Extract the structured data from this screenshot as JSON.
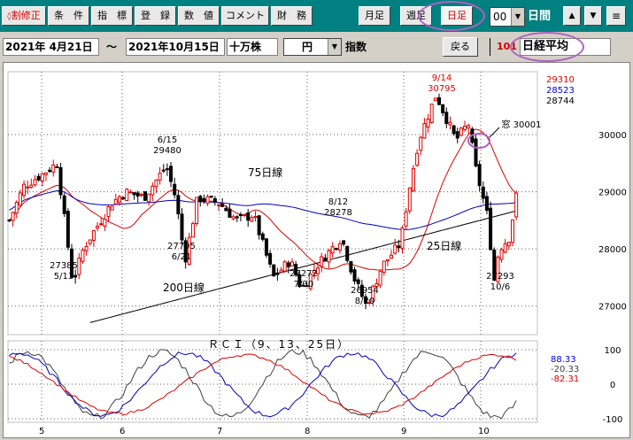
{
  "toolbar": {
    "buttons": [
      "割修正",
      "条　件",
      "指　標",
      "登　録",
      "数　値",
      "コメント",
      "財　務"
    ],
    "period_buttons": [
      "月足",
      "週足",
      "日足"
    ],
    "hour_value": "00",
    "unit_label": "日間",
    "nav_up": "▲",
    "nav_down": "▼",
    "menu_icon": "≡"
  },
  "row2": {
    "date_from": "2021年  4月21日",
    "tilde": "～",
    "date_to": "2021年10月15日",
    "unit": "十万株",
    "currency": "円",
    "index_label": "指数",
    "back_button": "戻る",
    "code": "101",
    "index_name": "日経平均"
  },
  "chart_data": [
    {
      "type": "candlestick",
      "title": "",
      "x_tick_labels": [
        "5",
        "6",
        "7",
        "8",
        "9",
        "10"
      ],
      "y_tick_labels": [
        "30000",
        "29000",
        "28000",
        "27000"
      ],
      "ylim": [
        26500,
        31100
      ],
      "legend_values": [
        "29310",
        "28523",
        "28744"
      ],
      "legend_colors": [
        "#e00000",
        "#0000e0",
        "#000000"
      ],
      "series": [
        {
          "name": "25日線",
          "color": "#e00000"
        },
        {
          "name": "75日線",
          "color": "#0000c0"
        },
        {
          "name": "200日線",
          "color": "#000000"
        }
      ],
      "annotations": [
        {
          "text": "6/15",
          "sub": "29480"
        },
        {
          "text": "27385",
          "sub": "5/13"
        },
        {
          "text": "27795",
          "sub": "6/21"
        },
        {
          "text": "8/12",
          "sub": "28278"
        },
        {
          "text": "27272",
          "sub": "7/30"
        },
        {
          "text": "26954",
          "sub": "8/20"
        },
        {
          "text": "9/14",
          "sub": "30795"
        },
        {
          "text": "27293",
          "sub": "10/6"
        },
        {
          "text": "窓  30001",
          "sub": ""
        }
      ],
      "price_path": [
        [
          "4/21",
          28500
        ],
        [
          "4/26",
          29100
        ],
        [
          "5/1",
          29300
        ],
        [
          "5/7",
          29500
        ],
        [
          "5/13",
          27400
        ],
        [
          "5/17",
          28000
        ],
        [
          "5/21",
          28300
        ],
        [
          "5/28",
          28800
        ],
        [
          "6/2",
          29000
        ],
        [
          "6/8",
          28900
        ],
        [
          "6/15",
          29450
        ],
        [
          "6/18",
          28900
        ],
        [
          "6/21",
          27800
        ],
        [
          "6/25",
          28900
        ],
        [
          "7/1",
          28800
        ],
        [
          "7/7",
          28500
        ],
        [
          "7/13",
          28600
        ],
        [
          "7/20",
          27500
        ],
        [
          "7/26",
          27800
        ],
        [
          "7/30",
          27300
        ],
        [
          "8/4",
          27700
        ],
        [
          "8/12",
          28200
        ],
        [
          "8/16",
          27500
        ],
        [
          "8/20",
          27000
        ],
        [
          "8/25",
          27700
        ],
        [
          "8/31",
          28100
        ],
        [
          "9/3",
          29000
        ],
        [
          "9/7",
          29900
        ],
        [
          "9/14",
          30700
        ],
        [
          "9/17",
          30400
        ],
        [
          "9/22",
          29900
        ],
        [
          "9/27",
          30200
        ],
        [
          "9/30",
          29400
        ],
        [
          "10/4",
          28500
        ],
        [
          "10/6",
          27400
        ],
        [
          "10/8",
          28000
        ],
        [
          "10/12",
          28200
        ],
        [
          "10/15",
          29000
        ]
      ]
    },
    {
      "type": "line",
      "title": "ＲＣＩ（9、13、25日）",
      "y_tick_labels": [
        "100",
        "0",
        "-100"
      ],
      "ylim": [
        -100,
        100
      ],
      "legend_values": [
        "88.33",
        "-20.33",
        "-82.31"
      ],
      "legend_colors": [
        "#0000e0",
        "#404040",
        "#e00000"
      ],
      "series": [
        {
          "name": "9",
          "color": "#404040"
        },
        {
          "name": "13",
          "color": "#0000c0"
        },
        {
          "name": "25",
          "color": "#e00000"
        }
      ]
    }
  ]
}
